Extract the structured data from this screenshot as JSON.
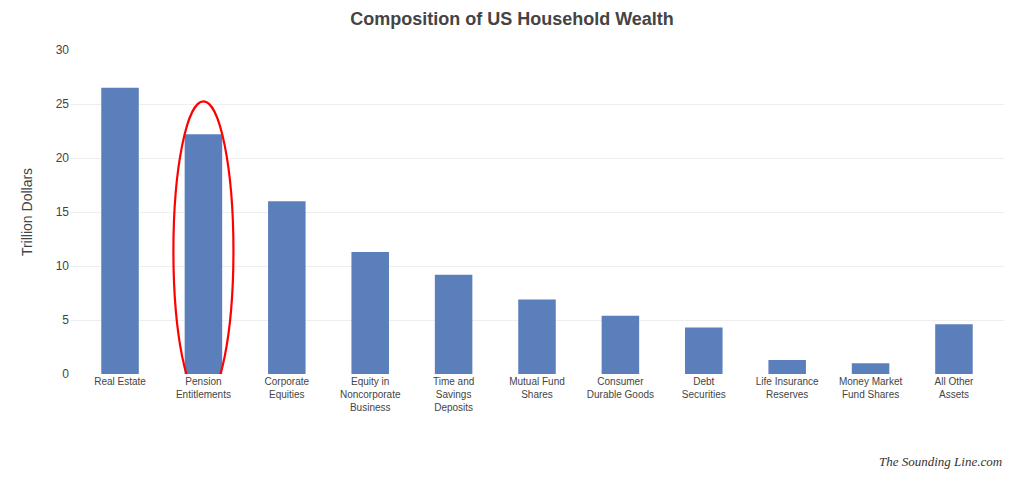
{
  "chart_data": {
    "type": "bar",
    "title": "Composition of US Household Wealth",
    "ylabel": "Trillion Dollars",
    "categories": [
      "Real Estate",
      "Pension\nEntitlements",
      "Corporate\nEquities",
      "Equity in\nNoncorporate\nBusiness",
      "Time and\nSavings\nDeposits",
      "Mutual Fund\nShares",
      "Consumer\nDurable Goods",
      "Debt\nSecurities",
      "Life Insurance\nReserves",
      "Money Market\nFund Shares",
      "All Other\nAssets"
    ],
    "values": [
      26.5,
      22.2,
      16.0,
      11.3,
      9.2,
      6.9,
      5.4,
      4.3,
      1.3,
      1.0,
      4.6
    ],
    "color": "#5b7fba",
    "ylim": [
      0,
      30
    ],
    "yticks": [
      0,
      5,
      10,
      15,
      20,
      25,
      30
    ],
    "grid": true,
    "annotations": [
      {
        "text": "The Sounding Line.com"
      },
      {
        "shape": "ellipse",
        "category": "Pension\nEntitlements",
        "color": "red"
      }
    ]
  }
}
